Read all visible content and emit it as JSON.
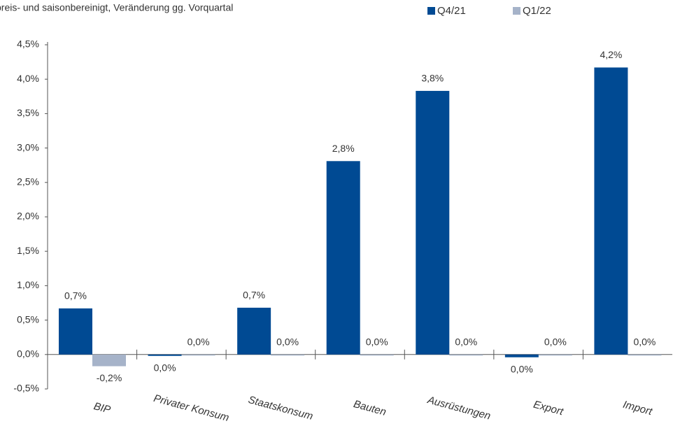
{
  "chart_data": {
    "type": "bar",
    "subtitle": "preis- und saisonbereinigt, Veränderung gg. Vorquartal",
    "categories": [
      "BIP",
      "Privater Konsum",
      "Staatskonsum",
      "Bauten",
      "Ausrüstungen",
      "Export",
      "Import"
    ],
    "series": [
      {
        "name": "Q4/21",
        "color": "#004a93",
        "values": [
          0.67,
          -0.02,
          0.68,
          2.81,
          3.83,
          -0.04,
          4.17
        ],
        "value_labels": [
          "0,7%",
          "0,0%",
          "0,7%",
          "2,8%",
          "3,8%",
          "0,0%",
          "4,2%"
        ]
      },
      {
        "name": "Q1/22",
        "color": "#a6b3c9",
        "values": [
          -0.17,
          0,
          0,
          0,
          0,
          0,
          0
        ],
        "value_labels": [
          "-0,2%",
          "0,0%",
          "0,0%",
          "0,0%",
          "0,0%",
          "0,0%",
          "0,0%"
        ]
      }
    ],
    "ylim": [
      -0.5,
      4.5
    ],
    "yticks": [
      {
        "value": -0.5,
        "label": "-0,5%"
      },
      {
        "value": 0,
        "label": "0,0%"
      },
      {
        "value": 0.5,
        "label": "0,5%"
      },
      {
        "value": 1,
        "label": "1,0%"
      },
      {
        "value": 1.5,
        "label": "1,5%"
      },
      {
        "value": 2,
        "label": "2,0%"
      },
      {
        "value": 2.5,
        "label": "2,5%"
      },
      {
        "value": 3,
        "label": "3,0%"
      },
      {
        "value": 3.5,
        "label": "3,5%"
      },
      {
        "value": 4,
        "label": "4,0%"
      },
      {
        "value": 4.5,
        "label": "4,5%"
      }
    ],
    "legend": "top-right"
  }
}
